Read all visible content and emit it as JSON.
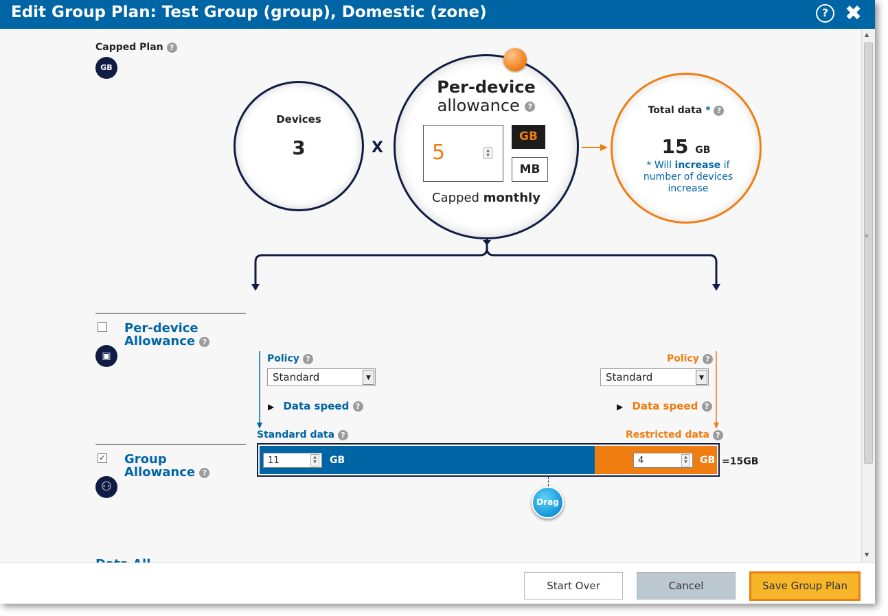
{
  "header": {
    "title": "Edit Group Plan: Test Group (group), Domestic (zone)",
    "help_icon": "?",
    "close_icon": "✖"
  },
  "plan": {
    "label": "Capped Plan",
    "icon_text": "GB"
  },
  "devices": {
    "label": "Devices",
    "value": "3"
  },
  "operator": "X",
  "per_device": {
    "title": "Per-device",
    "subtitle": "allowance",
    "value": "5",
    "unit_gb": "GB",
    "unit_mb": "MB",
    "selected_unit": "GB",
    "capped_prefix": "Capped",
    "capped_period": "monthly"
  },
  "total": {
    "label": "Total data",
    "star": "*",
    "value": "15",
    "unit": "GB",
    "note_prefix": "* Will",
    "note_bold": "increase",
    "note_suffix": "if number of devices increase"
  },
  "sections": {
    "per_device_allowance": {
      "line1": "Per-device",
      "line2": "Allowance",
      "checked": false
    },
    "group_allowance": {
      "line1": "Group",
      "line2": "Allowance",
      "checked": true,
      "check_mark": "✓"
    },
    "cut_off": "Data All..."
  },
  "standard": {
    "policy_label": "Policy",
    "policy_value": "Standard",
    "speed_label": "Data speed",
    "data_label": "Standard data",
    "amount": "11",
    "unit": "GB",
    "color": "#0065a4"
  },
  "restricted": {
    "policy_label": "Policy",
    "policy_value": "Standard",
    "speed_label": "Data speed",
    "data_label": "Restricted data",
    "amount": "4",
    "unit": "GB",
    "color": "#f07d10"
  },
  "split": {
    "total_text": "=15GB",
    "drag_label": "Drag",
    "standard_fraction": 0.7333
  },
  "footer": {
    "start_over": "Start Over",
    "cancel": "Cancel",
    "save": "Save Group Plan"
  }
}
